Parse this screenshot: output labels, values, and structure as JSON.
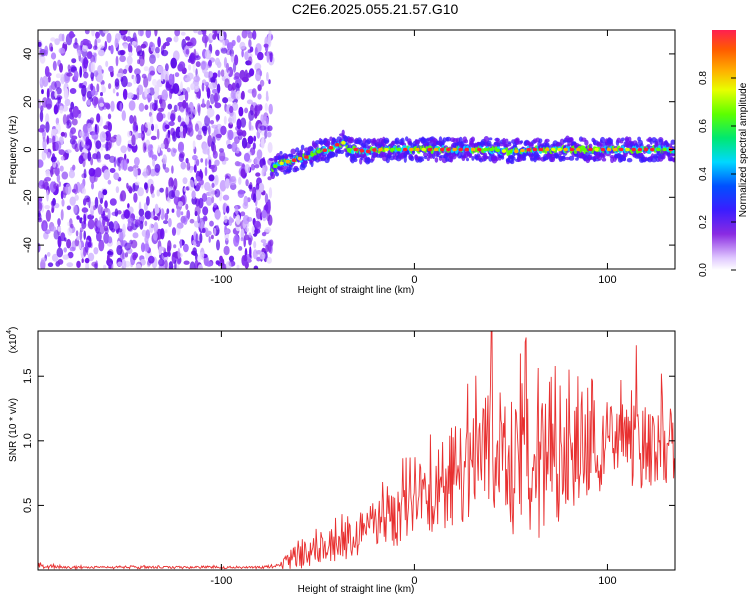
{
  "title": "C2E6.2025.055.21.57.G10",
  "chart_data": [
    {
      "type": "heatmap",
      "description_free": true,
      "xlabel": "Height of straight line (km)",
      "ylabel": "Frequency (Hz)",
      "xlim": [
        -195,
        135
      ],
      "ylim": [
        -50,
        50
      ],
      "xticks": [
        -100,
        0,
        100
      ],
      "xtick_labels": [
        "-100",
        "0",
        "100"
      ],
      "yticks": [
        -40,
        -20,
        0,
        20,
        40
      ],
      "ytick_labels": [
        "-40",
        "-20",
        "0",
        "20",
        "40"
      ],
      "noise_region_x": [
        -195,
        -74
      ],
      "signal_ridge": {
        "x": [
          -74,
          -70,
          -65,
          -60,
          -55,
          -50,
          -45,
          -40,
          -36,
          -34,
          -30,
          -25,
          -20,
          -10,
          0,
          10,
          20,
          30,
          40,
          50,
          60,
          70,
          80,
          90,
          100,
          110,
          120,
          130,
          135
        ],
        "y": [
          -8,
          -6,
          -5,
          -4,
          -3,
          -1,
          0,
          2,
          3,
          0,
          0,
          -1,
          0,
          0,
          0,
          0,
          0,
          0,
          0,
          -1,
          0,
          0,
          0,
          0,
          0,
          0,
          0,
          0,
          0
        ]
      },
      "colorbar": {
        "label": "Normalized spectral amplitude",
        "range": [
          0.0,
          1.0
        ],
        "ticks": [
          0.0,
          0.2,
          0.4,
          0.6,
          0.8
        ],
        "tick_labels": [
          "0.0",
          "0.2",
          "0.4",
          "0.6",
          "0.8"
        ],
        "colormap": "rainbow (white-purple-blue-cyan-green-yellow-orange-red)"
      },
      "grid": false
    },
    {
      "type": "line",
      "xlabel": "Height of straight line (km)",
      "ylabel": "SNR (10 * v/v)",
      "y_scale_label": "(x10",
      "y_scale_exponent": "4",
      "xlim": [
        -195,
        135
      ],
      "ylim": [
        0,
        1.85
      ],
      "xticks": [
        -100,
        0,
        100
      ],
      "xtick_labels": [
        "-100",
        "0",
        "100"
      ],
      "yticks": [
        0.5,
        1.0,
        1.5
      ],
      "ytick_labels": [
        "0.5",
        "1.0",
        "1.5"
      ],
      "series": [
        {
          "color": "#e83030",
          "envelope_x": [
            -195,
            -180,
            -160,
            -140,
            -120,
            -100,
            -80,
            -70,
            -65,
            -60,
            -55,
            -50,
            -40,
            -30,
            -20,
            -10,
            0,
            10,
            20,
            30,
            40,
            50,
            60,
            70,
            80,
            90,
            100,
            110,
            120,
            130,
            135
          ],
          "envelope_mean": [
            0.03,
            0.02,
            0.02,
            0.02,
            0.02,
            0.02,
            0.02,
            0.03,
            0.07,
            0.12,
            0.13,
            0.14,
            0.2,
            0.27,
            0.35,
            0.42,
            0.52,
            0.6,
            0.72,
            0.82,
            0.9,
            0.88,
            0.82,
            0.8,
            0.88,
            0.95,
            0.97,
            0.96,
            0.95,
            0.95,
            0.95
          ],
          "envelope_spread": [
            0.02,
            0.01,
            0.01,
            0.01,
            0.01,
            0.01,
            0.01,
            0.02,
            0.07,
            0.12,
            0.12,
            0.12,
            0.14,
            0.16,
            0.2,
            0.24,
            0.28,
            0.34,
            0.4,
            0.48,
            0.55,
            0.6,
            0.62,
            0.5,
            0.42,
            0.38,
            0.35,
            0.33,
            0.32,
            0.3,
            0.3
          ],
          "peaks": [
            [
              40,
              1.85
            ],
            [
              58,
              1.8
            ],
            [
              92,
              1.48
            ],
            [
              115,
              1.74
            ],
            [
              128,
              1.52
            ]
          ]
        }
      ],
      "grid": false
    }
  ]
}
